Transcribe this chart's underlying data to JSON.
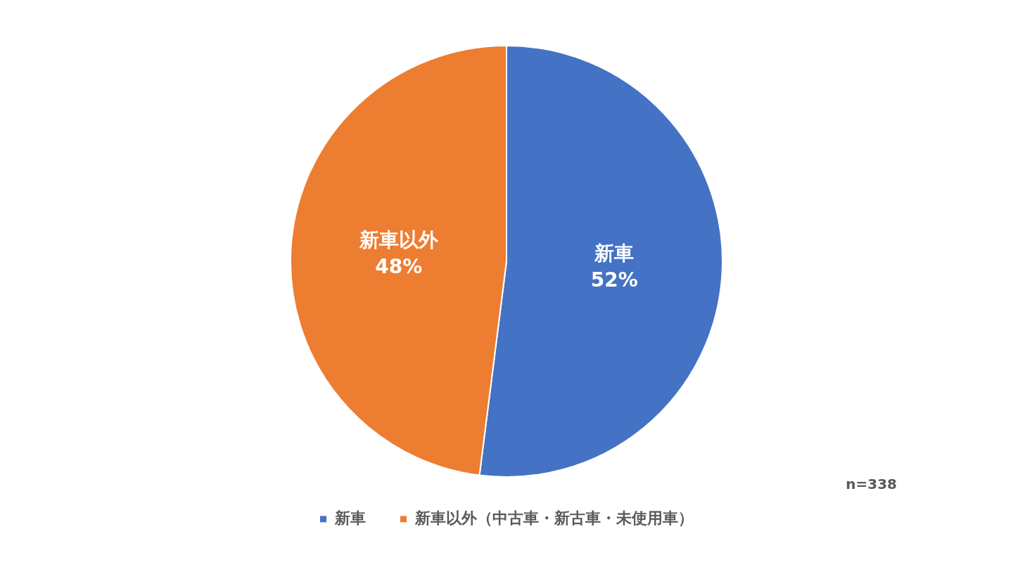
{
  "chart_data": {
    "type": "pie",
    "categories": [
      "新車",
      "新車以外（中古車・新古車・未使用車）"
    ],
    "values": [
      52,
      48
    ],
    "colors": [
      "#4472c4",
      "#ed7d31"
    ],
    "value_labels": [
      "新車\n52%",
      "新車以外\n48%"
    ],
    "legend": "bottom",
    "annotations": [
      "n=338"
    ]
  }
}
